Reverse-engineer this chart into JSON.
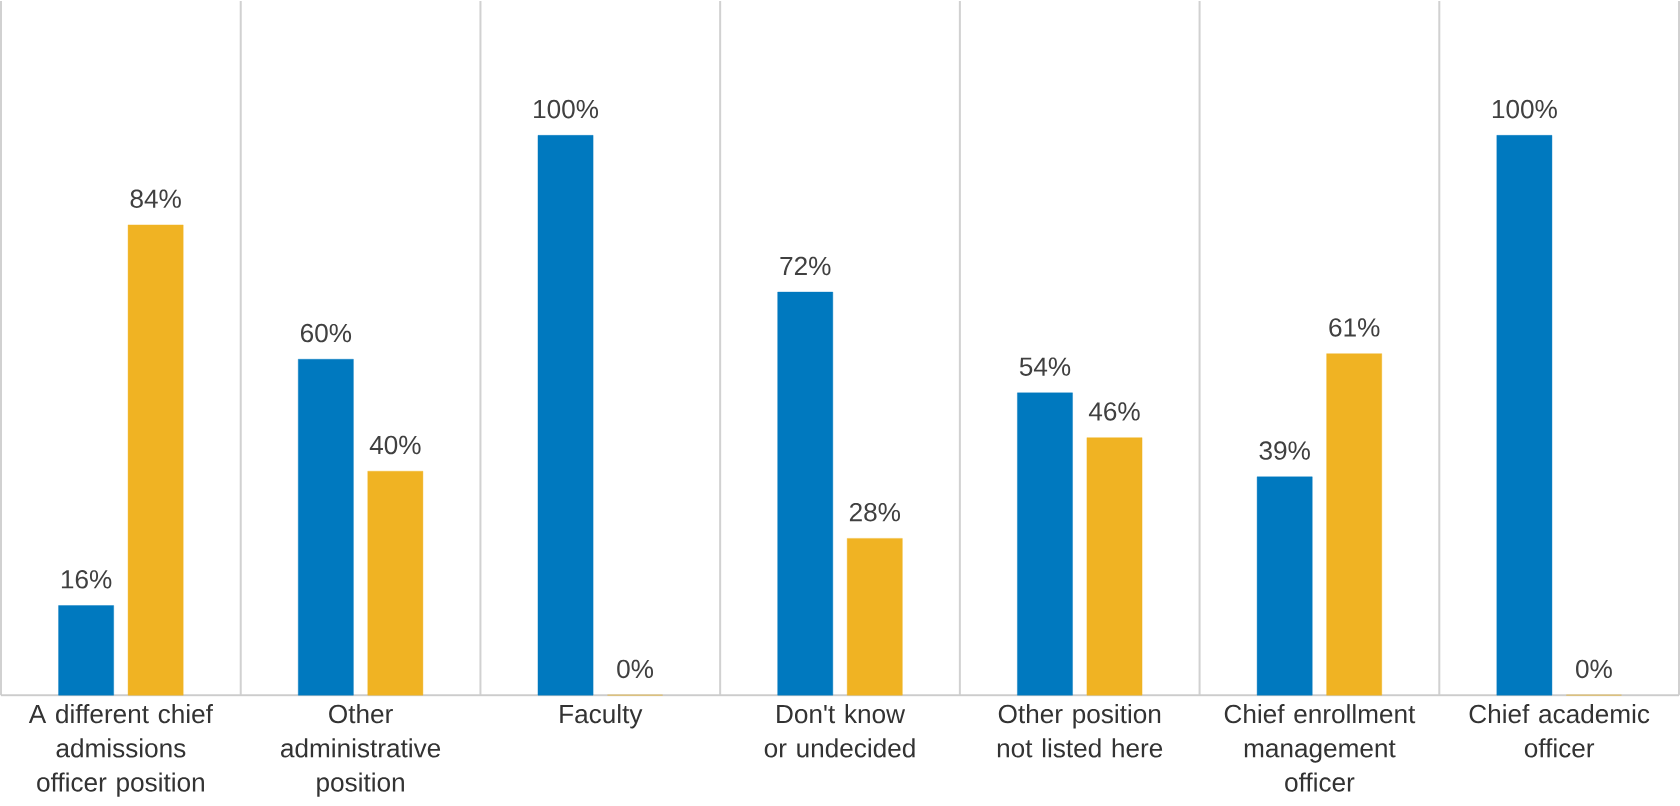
{
  "chart_data": {
    "type": "bar",
    "categories": [
      "A different chief admissions officer position",
      "Other administrative position",
      "Faculty",
      "Don't know or undecided",
      "Other position not listed here",
      "Chief enrollment management officer",
      "Chief academic officer"
    ],
    "series": [
      {
        "color": "#0079bf",
        "values": [
          16,
          60,
          100,
          72,
          54,
          39,
          100
        ],
        "value_labels": [
          "16%",
          "60%",
          "100%",
          "72%",
          "54%",
          "39%",
          "100%"
        ]
      },
      {
        "color": "#f0b323",
        "values": [
          84,
          40,
          0,
          28,
          46,
          61,
          0
        ],
        "value_labels": [
          "84%",
          "40%",
          "0%",
          "28%",
          "46%",
          "61%",
          "0%"
        ]
      }
    ]
  }
}
